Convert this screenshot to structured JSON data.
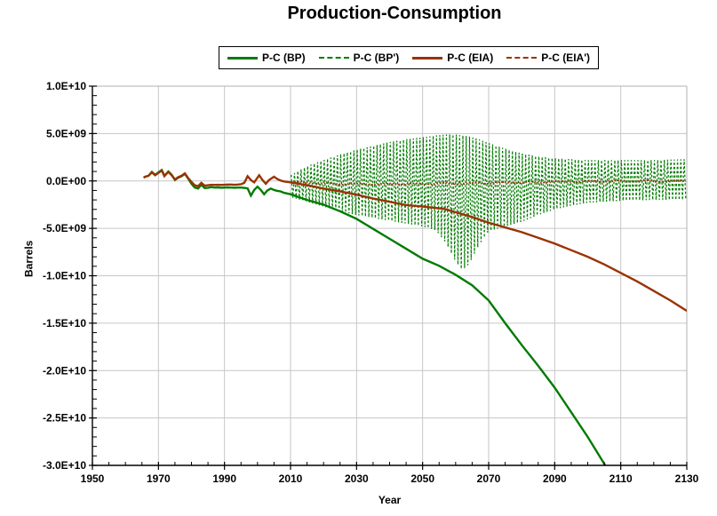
{
  "chart_data": {
    "type": "line",
    "title": "Production-Consumption",
    "xlabel": "Year",
    "ylabel": "Barrels",
    "unit": "barrels",
    "value_scale": 1000000000,
    "xlim": [
      1950,
      2130
    ],
    "ylim_in_billions": [
      -30,
      10
    ],
    "grid": true,
    "legend_position": "top-center",
    "colors": {
      "bp": "#007B00",
      "eia": "#993300",
      "gridline": "#c6c6c6",
      "plot_border": "#b0b0b0",
      "axis": "#000000"
    },
    "ticks": {
      "x": {
        "major_values": [
          1950,
          1970,
          1990,
          2010,
          2030,
          2050,
          2070,
          2090,
          2110,
          2130
        ],
        "labels": [
          "1950",
          "1970",
          "1990",
          "2010",
          "2030",
          "2050",
          "2070",
          "2090",
          "2110",
          "2130"
        ],
        "minor_step": 5
      },
      "y": {
        "major_values_billions": [
          10,
          5,
          0,
          -5,
          -10,
          -15,
          -20,
          -25,
          -30
        ],
        "labels": [
          "1.0E+10",
          "5.0E+09",
          "0.0E+00",
          "-5.0E+09",
          "-1.0E+10",
          "-1.5E+10",
          "-2.0E+10",
          "-2.5E+10",
          "-3.0E+10"
        ],
        "minor_step_billions": 1
      }
    },
    "series": [
      {
        "name": "P-C (BP)",
        "style": "solid",
        "color": "#007B00",
        "points_year_billions": [
          [
            1965.5,
            0.35
          ],
          [
            1966,
            0.45
          ],
          [
            1967,
            0.55
          ],
          [
            1968,
            0.95
          ],
          [
            1969,
            0.65
          ],
          [
            1970,
            0.9
          ],
          [
            1971,
            1.15
          ],
          [
            1971.8,
            0.55
          ],
          [
            1973,
            1.0
          ],
          [
            1974,
            0.65
          ],
          [
            1975,
            0.1
          ],
          [
            1976,
            0.35
          ],
          [
            1977,
            0.5
          ],
          [
            1978,
            0.75
          ],
          [
            1979,
            0.25
          ],
          [
            1980,
            -0.3
          ],
          [
            1981,
            -0.7
          ],
          [
            1982,
            -0.8
          ],
          [
            1983,
            -0.4
          ],
          [
            1984,
            -0.75
          ],
          [
            1985,
            -0.72
          ],
          [
            1986,
            -0.65
          ],
          [
            1987,
            -0.7
          ],
          [
            1988,
            -0.68
          ],
          [
            1989,
            -0.72
          ],
          [
            1990,
            -0.7
          ],
          [
            1991,
            -0.68
          ],
          [
            1992,
            -0.7
          ],
          [
            1993,
            -0.72
          ],
          [
            1994,
            -0.7
          ],
          [
            1995,
            -0.7
          ],
          [
            1996,
            -0.73
          ],
          [
            1997,
            -0.78
          ],
          [
            1998,
            -1.55
          ],
          [
            1999,
            -0.95
          ],
          [
            2000,
            -0.6
          ],
          [
            2001,
            -0.95
          ],
          [
            2002,
            -1.4
          ],
          [
            2003,
            -1.0
          ],
          [
            2004,
            -0.8
          ],
          [
            2005,
            -0.95
          ],
          [
            2006,
            -1.05
          ],
          [
            2007,
            -1.1
          ],
          [
            2008,
            -1.25
          ],
          [
            2010,
            -1.4
          ],
          [
            2012,
            -1.65
          ],
          [
            2015,
            -2.0
          ],
          [
            2020,
            -2.5
          ],
          [
            2025,
            -3.2
          ],
          [
            2030,
            -4.0
          ],
          [
            2035,
            -5.05
          ],
          [
            2040,
            -6.1
          ],
          [
            2045,
            -7.15
          ],
          [
            2050,
            -8.2
          ],
          [
            2055,
            -8.95
          ],
          [
            2060,
            -9.9
          ],
          [
            2065,
            -11.0
          ],
          [
            2070,
            -12.6
          ],
          [
            2075,
            -15.0
          ],
          [
            2080,
            -17.3
          ],
          [
            2085,
            -19.5
          ],
          [
            2090,
            -21.8
          ],
          [
            2095,
            -24.4
          ],
          [
            2100,
            -27.0
          ],
          [
            2106,
            -30.4
          ]
        ]
      },
      {
        "name": "P-C (BP')",
        "style": "dashed",
        "color": "#007B00",
        "oscillation": {
          "period_years": 1,
          "years": [
            2010,
            2013,
            2016,
            2020,
            2025,
            2030,
            2035,
            2040,
            2045,
            2050,
            2054,
            2057,
            2060,
            2062,
            2064,
            2067,
            2070,
            2075,
            2080,
            2085,
            2090,
            2095,
            2100,
            2110,
            2120,
            2130
          ],
          "top_billions": [
            0.6,
            1.2,
            1.7,
            2.2,
            2.8,
            3.3,
            3.7,
            4.1,
            4.4,
            4.6,
            4.8,
            4.9,
            4.9,
            4.8,
            4.7,
            4.4,
            4.0,
            3.4,
            2.9,
            2.6,
            2.4,
            2.3,
            2.2,
            2.2,
            2.2,
            2.3
          ],
          "bottom_billions": [
            -1.7,
            -2.0,
            -2.3,
            -2.7,
            -3.2,
            -3.6,
            -3.9,
            -4.2,
            -4.5,
            -4.8,
            -5.2,
            -6.5,
            -8.5,
            -9.4,
            -8.8,
            -6.8,
            -5.3,
            -4.8,
            -4.3,
            -3.6,
            -3.0,
            -2.6,
            -2.3,
            -2.1,
            -2.0,
            -2.0
          ]
        }
      },
      {
        "name": "P-C (EIA)",
        "style": "solid",
        "color": "#993300",
        "points_year_billions": [
          [
            1965.5,
            0.35
          ],
          [
            1966,
            0.45
          ],
          [
            1967,
            0.55
          ],
          [
            1968,
            0.9
          ],
          [
            1969,
            0.6
          ],
          [
            1970,
            0.85
          ],
          [
            1971,
            1.1
          ],
          [
            1971.8,
            0.5
          ],
          [
            1973,
            0.95
          ],
          [
            1974,
            0.6
          ],
          [
            1975,
            0.15
          ],
          [
            1976,
            0.4
          ],
          [
            1977,
            0.55
          ],
          [
            1978,
            0.8
          ],
          [
            1979,
            0.3
          ],
          [
            1980,
            -0.1
          ],
          [
            1981,
            -0.45
          ],
          [
            1982,
            -0.55
          ],
          [
            1983,
            -0.2
          ],
          [
            1984,
            -0.5
          ],
          [
            1985,
            -0.45
          ],
          [
            1986,
            -0.4
          ],
          [
            1987,
            -0.42
          ],
          [
            1988,
            -0.4
          ],
          [
            1989,
            -0.42
          ],
          [
            1990,
            -0.4
          ],
          [
            1991,
            -0.38
          ],
          [
            1992,
            -0.38
          ],
          [
            1993,
            -0.4
          ],
          [
            1994,
            -0.38
          ],
          [
            1995,
            -0.35
          ],
          [
            1996,
            -0.2
          ],
          [
            1997,
            0.5
          ],
          [
            1998,
            0.1
          ],
          [
            1999,
            -0.15
          ],
          [
            2000.5,
            0.6
          ],
          [
            2001.5,
            0.1
          ],
          [
            2002.5,
            -0.3
          ],
          [
            2003.5,
            0.1
          ],
          [
            2005,
            0.45
          ],
          [
            2006,
            0.2
          ],
          [
            2007,
            0.05
          ],
          [
            2008,
            -0.05
          ],
          [
            2010,
            -0.15
          ],
          [
            2015,
            -0.45
          ],
          [
            2020,
            -0.8
          ],
          [
            2025,
            -1.1
          ],
          [
            2030,
            -1.45
          ],
          [
            2035,
            -1.85
          ],
          [
            2040,
            -2.2
          ],
          [
            2045,
            -2.55
          ],
          [
            2050,
            -2.7
          ],
          [
            2056.5,
            -2.95
          ],
          [
            2060,
            -3.3
          ],
          [
            2065,
            -3.8
          ],
          [
            2070,
            -4.4
          ],
          [
            2075,
            -4.9
          ],
          [
            2080,
            -5.4
          ],
          [
            2085,
            -6.0
          ],
          [
            2090,
            -6.6
          ],
          [
            2095,
            -7.3
          ],
          [
            2100,
            -8.0
          ],
          [
            2105,
            -8.8
          ],
          [
            2110,
            -9.7
          ],
          [
            2115,
            -10.6
          ],
          [
            2120,
            -11.6
          ],
          [
            2125,
            -12.6
          ],
          [
            2130,
            -13.7
          ]
        ]
      },
      {
        "name": "P-C (EIA')",
        "style": "dashed",
        "color": "#993300",
        "oscillation": {
          "period_years": 1,
          "years": [
            2010,
            2020,
            2030,
            2040,
            2050,
            2060,
            2070,
            2080,
            2090,
            2100,
            2110,
            2120,
            2130
          ],
          "top_billions": [
            -0.01,
            -0.19,
            -0.23,
            -0.23,
            -0.21,
            -0.18,
            -0.13,
            -0.06,
            0.01,
            0.06,
            0.07,
            0.07,
            0.07
          ],
          "bottom_billions": [
            -0.19,
            -0.37,
            -0.41,
            -0.41,
            -0.39,
            -0.36,
            -0.31,
            -0.24,
            -0.17,
            -0.12,
            -0.11,
            -0.11,
            -0.11
          ]
        }
      }
    ]
  }
}
